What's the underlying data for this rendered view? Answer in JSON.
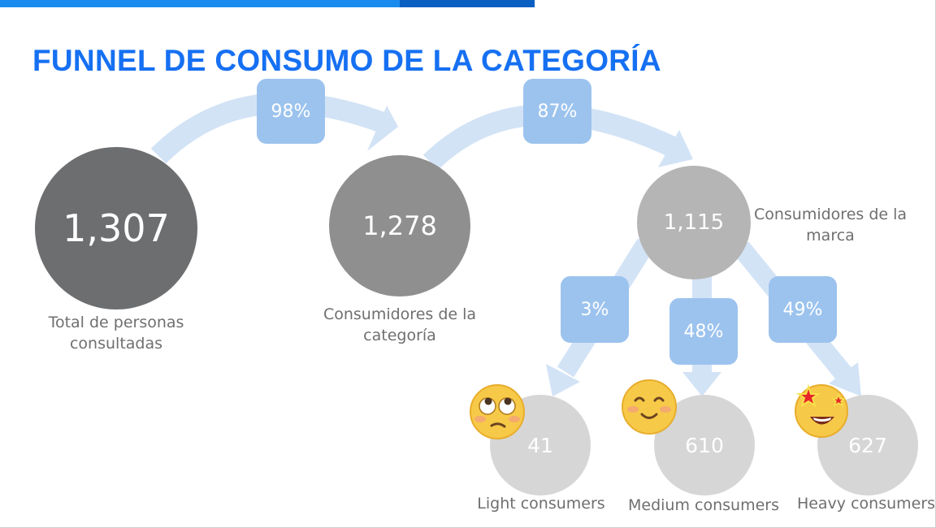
{
  "title": "FUNNEL DE CONSUMO DE LA CATEGORÍA",
  "colors": {
    "title": "#1670f2",
    "accent_bar": "#1a8cf0",
    "accent_bar_dark": "#0a5fc2",
    "arrow": "#d3e3f6",
    "badge": "#9cc3ee",
    "node_1": "#6d6e70",
    "node_2": "#8f8f8f",
    "node_3": "#b5b5b5",
    "node_segment": "#d6d6d6",
    "label_text": "#6f6f6f"
  },
  "nodes": [
    {
      "id": "total",
      "value": "1,307",
      "label_line1": "Total de personas",
      "label_line2": "consultadas"
    },
    {
      "id": "category",
      "value": "1,278",
      "label_line1": "Consumidores de la",
      "label_line2": "categoría"
    },
    {
      "id": "brand",
      "value": "1,115",
      "label_line1": "Consumidores de la",
      "label_line2": "marca"
    },
    {
      "id": "light",
      "value": "41",
      "label": "Light consumers",
      "emoji": "face-with-rolling-eyes-icon"
    },
    {
      "id": "medium",
      "value": "610",
      "label": "Medium consumers",
      "emoji": "smiling-face-icon"
    },
    {
      "id": "heavy",
      "value": "627",
      "label": "Heavy consumers",
      "emoji": "star-struck-face-icon"
    }
  ],
  "conversions": [
    {
      "from": "total",
      "to": "category",
      "value": "98%"
    },
    {
      "from": "category",
      "to": "brand",
      "value": "87%"
    },
    {
      "from": "brand",
      "to": "light",
      "value": "3%"
    },
    {
      "from": "brand",
      "to": "medium",
      "value": "48%"
    },
    {
      "from": "brand",
      "to": "heavy",
      "value": "49%"
    }
  ]
}
